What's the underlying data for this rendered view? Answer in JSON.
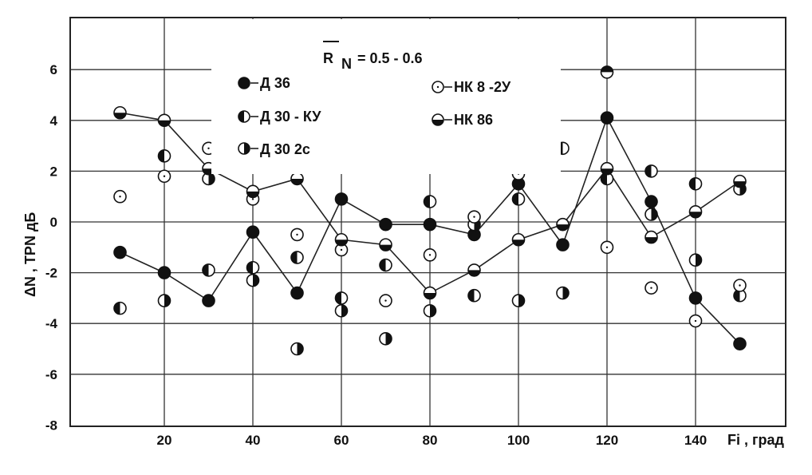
{
  "chart_data": {
    "type": "line",
    "xlabel": "Fi , град",
    "ylabel": "ΔN ,   TPN  дБ",
    "xlim": [
      0,
      150
    ],
    "ylim": [
      -8,
      8
    ],
    "x_ticks": [
      20,
      40,
      60,
      80,
      100,
      120,
      140
    ],
    "y_ticks": [
      -8,
      -6,
      -4,
      -2,
      0,
      2,
      4,
      6
    ],
    "grid": true,
    "legend_title": {
      "main": "R",
      "sub": "N",
      "value": "=   0.5 - 0.6"
    },
    "legend_position": "top-center",
    "series": [
      {
        "name": "Д 36",
        "marker": "filled",
        "connected": true,
        "points": [
          [
            10,
            -1.2
          ],
          [
            20,
            -2.0
          ],
          [
            30,
            -3.1
          ],
          [
            40,
            -0.4
          ],
          [
            50,
            -2.8
          ],
          [
            60,
            0.9
          ],
          [
            70,
            -0.1
          ],
          [
            80,
            -0.1
          ],
          [
            90,
            -0.5
          ],
          [
            100,
            1.5
          ],
          [
            110,
            -0.9
          ],
          [
            120,
            4.1
          ],
          [
            130,
            0.8
          ],
          [
            140,
            -3.0
          ],
          [
            150,
            -4.8
          ]
        ]
      },
      {
        "name": "Д 30 - КУ",
        "marker": "half-left",
        "connected": false,
        "points": [
          [
            10,
            -3.4
          ],
          [
            20,
            2.6
          ],
          [
            30,
            -1.9
          ],
          [
            40,
            -1.8
          ],
          [
            50,
            -1.4
          ],
          [
            60,
            -3.0
          ],
          [
            70,
            -1.7
          ],
          [
            80,
            0.8
          ],
          [
            90,
            -2.9
          ],
          [
            100,
            0.9
          ],
          [
            110,
            2.9
          ],
          [
            120,
            1.7
          ],
          [
            130,
            2.0
          ],
          [
            140,
            1.5
          ],
          [
            150,
            -2.9
          ]
        ]
      },
      {
        "name": "Д 30 2с",
        "marker": "half-right",
        "connected": false,
        "points": [
          [
            20,
            -3.1
          ],
          [
            30,
            1.7
          ],
          [
            40,
            -2.3
          ],
          [
            50,
            -5.0
          ],
          [
            60,
            -3.5
          ],
          [
            70,
            -4.6
          ],
          [
            80,
            -3.5
          ],
          [
            90,
            -0.1
          ],
          [
            100,
            -3.1
          ],
          [
            110,
            -2.8
          ],
          [
            130,
            0.3
          ],
          [
            140,
            -1.5
          ],
          [
            150,
            1.3
          ]
        ]
      },
      {
        "name": "НК 8 -2У",
        "marker": "open",
        "connected": false,
        "points": [
          [
            10,
            1.0
          ],
          [
            20,
            1.8
          ],
          [
            30,
            2.9
          ],
          [
            40,
            0.9
          ],
          [
            50,
            -0.5
          ],
          [
            60,
            -1.1
          ],
          [
            70,
            -3.1
          ],
          [
            80,
            -1.3
          ],
          [
            90,
            0.2
          ],
          [
            100,
            1.9
          ],
          [
            120,
            -1.0
          ],
          [
            130,
            -2.6
          ],
          [
            140,
            -3.9
          ],
          [
            150,
            -2.5
          ]
        ]
      },
      {
        "name": "НК 86",
        "marker": "half-bottom",
        "connected": true,
        "points": [
          [
            10,
            4.3
          ],
          [
            20,
            4.0
          ],
          [
            30,
            2.1
          ],
          [
            40,
            1.2
          ],
          [
            50,
            1.7
          ],
          [
            60,
            -0.7
          ],
          [
            70,
            -0.9
          ],
          [
            80,
            -2.8
          ],
          [
            90,
            -1.9
          ],
          [
            100,
            -0.7
          ],
          [
            110,
            -0.1
          ],
          [
            120,
            2.1
          ],
          [
            130,
            -0.6
          ],
          [
            140,
            0.4
          ],
          [
            150,
            1.6
          ]
        ]
      },
      {
        "name": "",
        "marker": "half-top",
        "connected": false,
        "points": [
          [
            120,
            5.9
          ]
        ]
      }
    ]
  }
}
